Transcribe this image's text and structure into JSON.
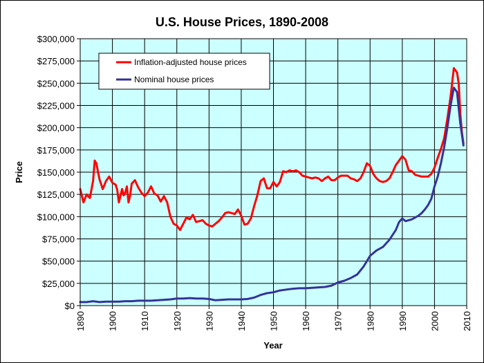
{
  "chart_data": {
    "type": "line",
    "title": "U.S. House Prices, 1890-2008",
    "xlabel": "Year",
    "ylabel": "Price",
    "xlim": [
      1890,
      2010
    ],
    "ylim": [
      0,
      300000
    ],
    "x_ticks": [
      1890,
      1900,
      1910,
      1920,
      1930,
      1940,
      1950,
      1960,
      1970,
      1980,
      1990,
      2000,
      2010
    ],
    "y_ticks": [
      0,
      25000,
      50000,
      75000,
      100000,
      125000,
      150000,
      175000,
      200000,
      225000,
      250000,
      275000,
      300000
    ],
    "y_tick_labels": [
      "$0",
      "$25,000",
      "$50,000",
      "$75,000",
      "$100,000",
      "$125,000",
      "$150,000",
      "$175,000",
      "$200,000",
      "$225,000",
      "$250,000",
      "$275,000",
      "$300,000"
    ],
    "x_tick_labels": [
      "1890",
      "1900",
      "1910",
      "1920",
      "1930",
      "1940",
      "1950",
      "1960",
      "1970",
      "1980",
      "1990",
      "2000",
      "2010"
    ],
    "grid": true,
    "plot_background": "#ccffff",
    "legend_position": "top-left",
    "series": [
      {
        "name": "Inflation-adjusted house prices",
        "color": "#ff0000",
        "points": [
          [
            1890,
            131000
          ],
          [
            1891,
            116000
          ],
          [
            1892,
            125000
          ],
          [
            1893,
            121000
          ],
          [
            1894,
            140000
          ],
          [
            1894.5,
            163000
          ],
          [
            1895,
            160000
          ],
          [
            1896,
            142000
          ],
          [
            1897,
            131000
          ],
          [
            1898,
            140000
          ],
          [
            1899,
            145000
          ],
          [
            1900,
            138000
          ],
          [
            1901,
            136000
          ],
          [
            1901.5,
            130000
          ],
          [
            1902,
            116000
          ],
          [
            1903,
            131000
          ],
          [
            1903.5,
            124000
          ],
          [
            1904,
            127000
          ],
          [
            1904.5,
            134000
          ],
          [
            1905,
            116000
          ],
          [
            1905.5,
            124000
          ],
          [
            1906,
            137000
          ],
          [
            1907,
            141000
          ],
          [
            1908,
            133000
          ],
          [
            1909,
            127000
          ],
          [
            1910,
            123000
          ],
          [
            1911,
            127000
          ],
          [
            1912,
            134000
          ],
          [
            1913,
            126000
          ],
          [
            1914,
            124000
          ],
          [
            1915,
            117000
          ],
          [
            1916,
            123000
          ],
          [
            1917,
            116000
          ],
          [
            1918,
            100000
          ],
          [
            1919,
            92000
          ],
          [
            1920,
            90000
          ],
          [
            1921,
            85000
          ],
          [
            1922,
            92000
          ],
          [
            1923,
            99000
          ],
          [
            1924,
            97000
          ],
          [
            1925,
            102000
          ],
          [
            1926,
            94000
          ],
          [
            1927,
            95000
          ],
          [
            1928,
            96000
          ],
          [
            1929,
            92000
          ],
          [
            1930,
            90000
          ],
          [
            1931,
            89000
          ],
          [
            1932,
            92000
          ],
          [
            1933,
            95000
          ],
          [
            1934,
            99000
          ],
          [
            1935,
            104000
          ],
          [
            1936,
            105000
          ],
          [
            1937,
            104000
          ],
          [
            1938,
            103000
          ],
          [
            1939,
            108000
          ],
          [
            1940,
            101000
          ],
          [
            1941,
            91000
          ],
          [
            1942,
            92000
          ],
          [
            1943,
            98000
          ],
          [
            1944,
            112000
          ],
          [
            1945,
            124000
          ],
          [
            1946,
            140000
          ],
          [
            1947,
            143000
          ],
          [
            1948,
            132000
          ],
          [
            1949,
            132000
          ],
          [
            1950,
            139000
          ],
          [
            1951,
            134000
          ],
          [
            1952,
            139000
          ],
          [
            1953,
            151000
          ],
          [
            1954,
            150000
          ],
          [
            1955,
            152000
          ],
          [
            1956,
            151000
          ],
          [
            1957,
            152000
          ],
          [
            1958,
            150000
          ],
          [
            1959,
            146000
          ],
          [
            1960,
            145000
          ],
          [
            1961,
            144000
          ],
          [
            1962,
            143000
          ],
          [
            1963,
            144000
          ],
          [
            1964,
            143000
          ],
          [
            1965,
            140000
          ],
          [
            1966,
            143000
          ],
          [
            1967,
            145000
          ],
          [
            1968,
            141000
          ],
          [
            1969,
            141000
          ],
          [
            1970,
            144000
          ],
          [
            1971,
            146000
          ],
          [
            1972,
            146000
          ],
          [
            1973,
            146000
          ],
          [
            1974,
            143000
          ],
          [
            1975,
            142000
          ],
          [
            1976,
            140000
          ],
          [
            1977,
            143000
          ],
          [
            1978,
            150000
          ],
          [
            1979,
            160000
          ],
          [
            1980,
            157000
          ],
          [
            1981,
            148000
          ],
          [
            1982,
            143000
          ],
          [
            1983,
            140000
          ],
          [
            1984,
            139000
          ],
          [
            1985,
            140000
          ],
          [
            1986,
            143000
          ],
          [
            1987,
            150000
          ],
          [
            1988,
            158000
          ],
          [
            1989,
            163000
          ],
          [
            1990,
            168000
          ],
          [
            1991,
            164000
          ],
          [
            1992,
            152000
          ],
          [
            1993,
            151000
          ],
          [
            1994,
            147000
          ],
          [
            1995,
            146000
          ],
          [
            1996,
            145000
          ],
          [
            1997,
            145000
          ],
          [
            1998,
            145000
          ],
          [
            1999,
            148000
          ],
          [
            2000,
            155000
          ],
          [
            2001,
            166000
          ],
          [
            2002,
            176000
          ],
          [
            2003,
            188000
          ],
          [
            2004,
            210000
          ],
          [
            2005,
            235000
          ],
          [
            2006,
            267000
          ],
          [
            2007,
            262000
          ],
          [
            2007.5,
            250000
          ],
          [
            2008,
            216000
          ],
          [
            2008.5,
            195000
          ],
          [
            2009,
            182000
          ]
        ]
      },
      {
        "name": "Nominal house prices",
        "color": "#333399",
        "points": [
          [
            1890,
            4000
          ],
          [
            1892,
            4000
          ],
          [
            1894,
            5000
          ],
          [
            1896,
            4000
          ],
          [
            1898,
            4500
          ],
          [
            1900,
            4500
          ],
          [
            1902,
            4500
          ],
          [
            1904,
            5000
          ],
          [
            1906,
            5000
          ],
          [
            1908,
            5500
          ],
          [
            1910,
            5500
          ],
          [
            1912,
            5500
          ],
          [
            1914,
            6000
          ],
          [
            1916,
            6500
          ],
          [
            1918,
            7000
          ],
          [
            1920,
            8000
          ],
          [
            1922,
            8000
          ],
          [
            1924,
            8500
          ],
          [
            1926,
            8000
          ],
          [
            1928,
            8000
          ],
          [
            1930,
            7500
          ],
          [
            1932,
            6000
          ],
          [
            1934,
            6500
          ],
          [
            1936,
            7000
          ],
          [
            1938,
            7000
          ],
          [
            1940,
            7000
          ],
          [
            1942,
            7500
          ],
          [
            1944,
            9000
          ],
          [
            1946,
            12000
          ],
          [
            1948,
            14000
          ],
          [
            1950,
            15000
          ],
          [
            1952,
            17000
          ],
          [
            1954,
            18000
          ],
          [
            1956,
            19000
          ],
          [
            1958,
            19500
          ],
          [
            1960,
            19500
          ],
          [
            1962,
            20000
          ],
          [
            1964,
            20500
          ],
          [
            1966,
            21000
          ],
          [
            1968,
            22500
          ],
          [
            1970,
            26000
          ],
          [
            1972,
            28000
          ],
          [
            1974,
            31000
          ],
          [
            1976,
            35000
          ],
          [
            1978,
            44000
          ],
          [
            1980,
            56000
          ],
          [
            1982,
            62000
          ],
          [
            1984,
            66000
          ],
          [
            1986,
            74000
          ],
          [
            1988,
            85000
          ],
          [
            1989,
            94000
          ],
          [
            1990,
            98000
          ],
          [
            1991,
            95000
          ],
          [
            1992,
            96000
          ],
          [
            1993,
            97000
          ],
          [
            1994,
            99000
          ],
          [
            1995,
            101000
          ],
          [
            1996,
            104000
          ],
          [
            1997,
            108000
          ],
          [
            1998,
            113000
          ],
          [
            1999,
            120000
          ],
          [
            2000,
            134000
          ],
          [
            2001,
            145000
          ],
          [
            2002,
            160000
          ],
          [
            2003,
            178000
          ],
          [
            2004,
            200000
          ],
          [
            2005,
            225000
          ],
          [
            2006,
            245000
          ],
          [
            2007,
            240000
          ],
          [
            2008,
            205000
          ],
          [
            2009,
            180000
          ]
        ]
      }
    ]
  }
}
